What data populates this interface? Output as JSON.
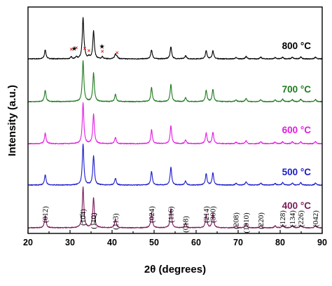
{
  "chart_data": {
    "type": "line",
    "title": "",
    "xlabel": "2θ (degrees)",
    "ylabel": "Intensity (a.u.)",
    "xlim": [
      20,
      90
    ],
    "x_ticks": [
      20,
      30,
      40,
      50,
      60,
      70,
      80,
      90
    ],
    "y_ticks": [],
    "grid": false,
    "peak_positions": [
      24.1,
      33.1,
      35.6,
      40.8,
      49.4,
      54.0,
      57.5,
      62.4,
      64.0,
      69.5,
      71.9,
      75.4,
      78.8,
      80.6,
      82.9,
      84.9,
      88.4
    ],
    "series": [
      {
        "name": "800 °C",
        "color": "#000000",
        "peak_intensities": [
          0.22,
          1.0,
          0.68,
          0.12,
          0.22,
          0.3,
          0.08,
          0.2,
          0.2,
          0.03,
          0.06,
          0.04,
          0.03,
          0.04,
          0.04,
          0.05,
          0.04
        ],
        "impurity_peaks": [
          30.3,
          31.5,
          33.5,
          34.5,
          37.7,
          41.2
        ],
        "star_peaks": [
          31.0,
          37.6
        ]
      },
      {
        "name": "700 °C",
        "color": "#1e7a1e",
        "peak_intensities": [
          0.28,
          1.0,
          0.7,
          0.18,
          0.35,
          0.42,
          0.1,
          0.28,
          0.3,
          0.04,
          0.08,
          0.05,
          0.04,
          0.06,
          0.05,
          0.06,
          0.05
        ]
      },
      {
        "name": "600 °C",
        "color": "#e31ae3",
        "peak_intensities": [
          0.26,
          1.0,
          0.72,
          0.16,
          0.34,
          0.44,
          0.09,
          0.26,
          0.28,
          0.04,
          0.07,
          0.05,
          0.04,
          0.05,
          0.05,
          0.05,
          0.05
        ]
      },
      {
        "name": "500 °C",
        "color": "#1a1acc",
        "peak_intensities": [
          0.25,
          1.0,
          0.72,
          0.17,
          0.34,
          0.44,
          0.1,
          0.28,
          0.3,
          0.04,
          0.08,
          0.05,
          0.04,
          0.06,
          0.05,
          0.06,
          0.05
        ]
      },
      {
        "name": "400 °C",
        "color": "#7a1a5a",
        "peak_intensities": [
          0.3,
          1.0,
          0.74,
          0.22,
          0.38,
          0.48,
          0.12,
          0.32,
          0.34,
          0.05,
          0.1,
          0.06,
          0.05,
          0.07,
          0.06,
          0.07,
          0.06
        ]
      }
    ],
    "peak_labels": [
      {
        "x": 24.1,
        "text": "(012)"
      },
      {
        "x": 33.1,
        "text": "(104)"
      },
      {
        "x": 35.6,
        "text": "(110)"
      },
      {
        "x": 40.8,
        "text": "(113)"
      },
      {
        "x": 49.4,
        "text": "(024)"
      },
      {
        "x": 54.0,
        "text": "(116)"
      },
      {
        "x": 57.5,
        "text": "(018)"
      },
      {
        "x": 62.4,
        "text": "(214)"
      },
      {
        "x": 64.0,
        "text": "(300)"
      },
      {
        "x": 69.5,
        "text": "(208)"
      },
      {
        "x": 71.9,
        "text": "(1010)"
      },
      {
        "x": 75.4,
        "text": "(220)"
      },
      {
        "x": 80.6,
        "text": "(128)"
      },
      {
        "x": 82.9,
        "text": "(134)"
      },
      {
        "x": 84.9,
        "text": "(226)"
      },
      {
        "x": 88.4,
        "text": "(042)"
      }
    ],
    "impurity_symbols": {
      "x": "×",
      "star": "★"
    },
    "impurity_colors": {
      "x": "#e02020",
      "star": "#000000"
    }
  }
}
